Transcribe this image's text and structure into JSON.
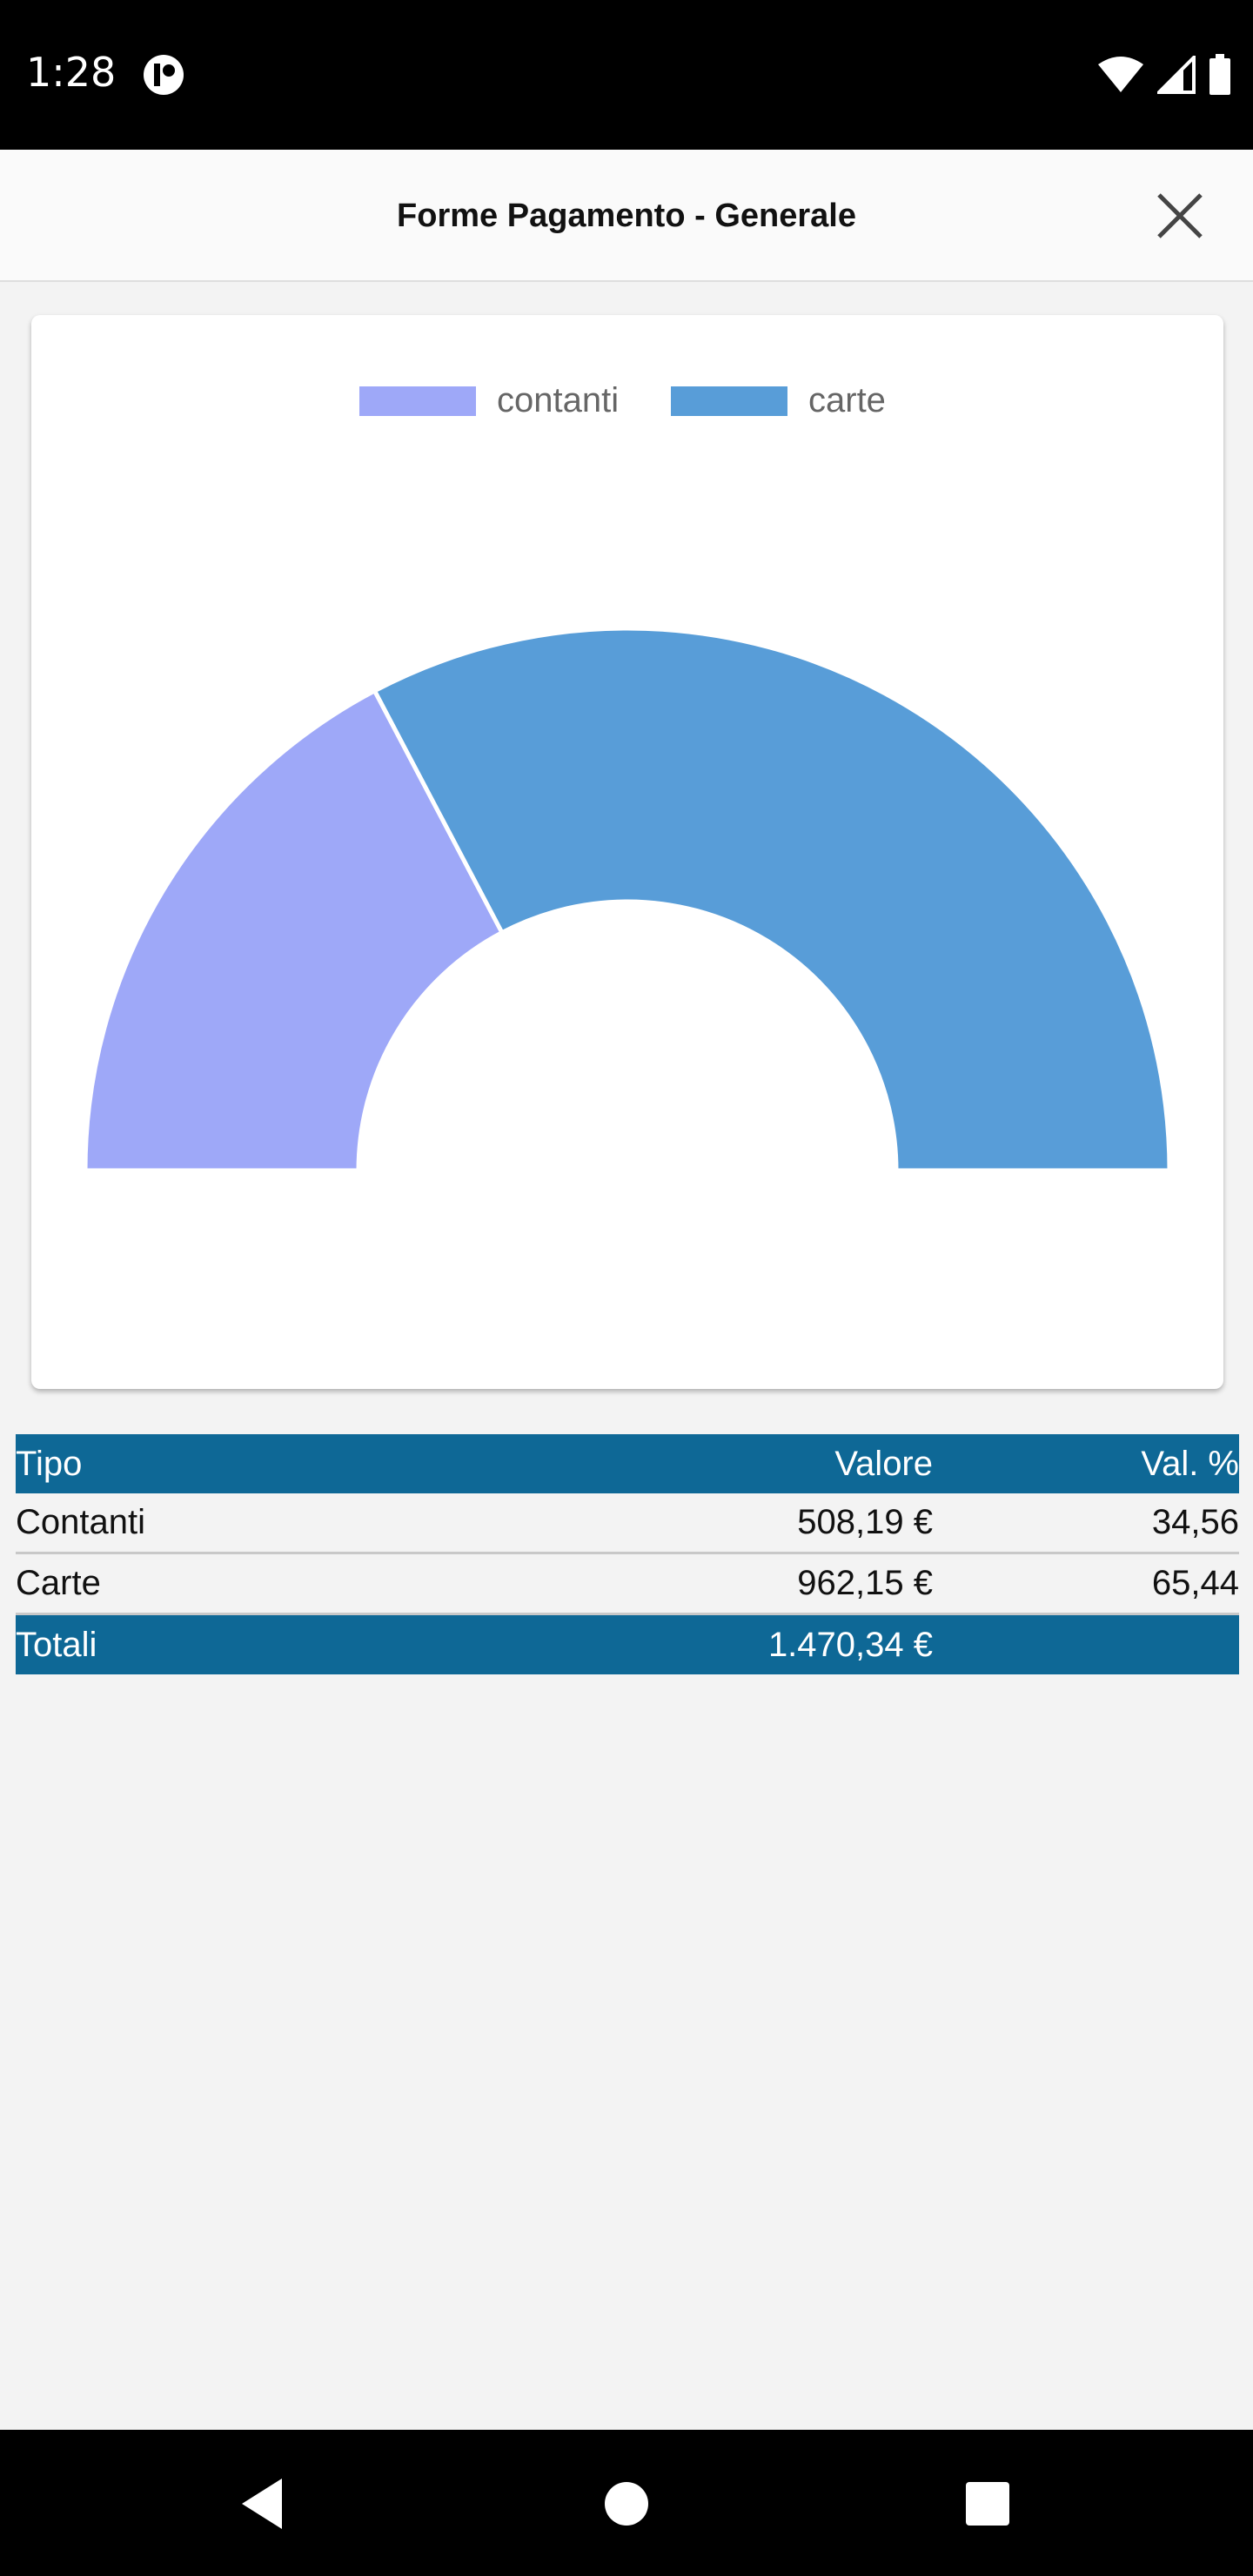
{
  "status": {
    "time": "1:28"
  },
  "header": {
    "title": "Forme Pagamento - Generale"
  },
  "colors": {
    "contanti": "#9ea8f8",
    "carte": "#589dd8",
    "table_header": "#0e6896"
  },
  "chart_data": {
    "type": "pie",
    "variant": "half-doughnut",
    "legend_position": "top",
    "series": [
      {
        "name": "contanti",
        "value": 508.19
      },
      {
        "name": "carte",
        "value": 962.15
      }
    ]
  },
  "table": {
    "headers": {
      "tipo": "Tipo",
      "valore": "Valore",
      "percent": "Val. %"
    },
    "rows": [
      {
        "tipo": "Contanti",
        "valore": "508,19 €",
        "percent": "34,56"
      },
      {
        "tipo": "Carte",
        "valore": "962,15 €",
        "percent": "65,44"
      }
    ],
    "footer": {
      "tipo": "Totali",
      "valore": "1.470,34 €"
    }
  }
}
